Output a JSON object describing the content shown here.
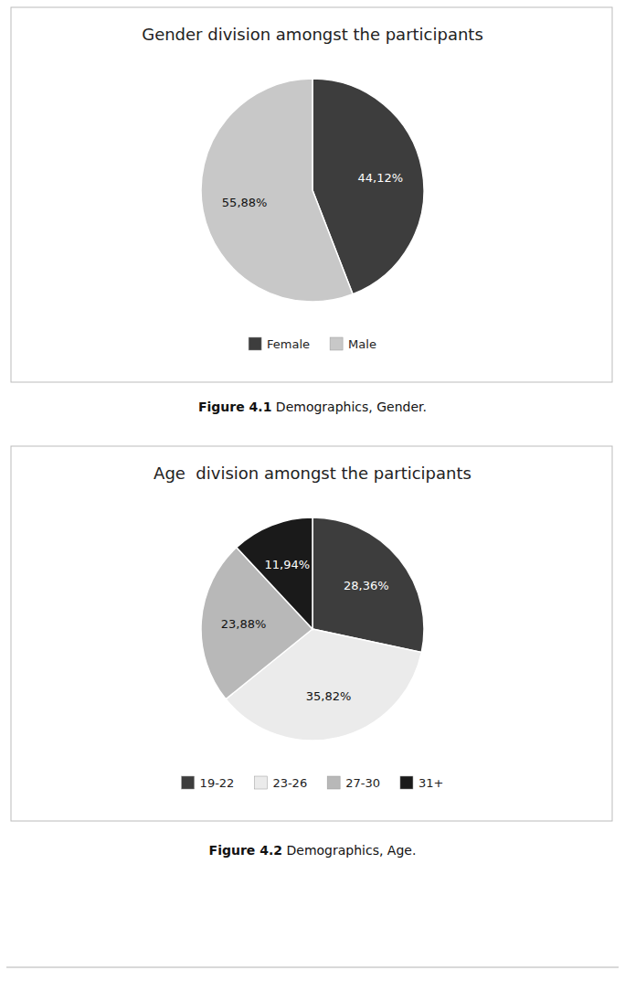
{
  "chart_data": [
    {
      "type": "pie",
      "title": "Gender division amongst the participants",
      "categories": [
        "Female",
        "Male"
      ],
      "values": [
        44.12,
        55.88
      ],
      "value_labels": [
        "44,12%",
        "55,88%"
      ],
      "colors": [
        "#3d3d3d",
        "#c8c8c8"
      ],
      "data_labels": true,
      "legend": "bottom",
      "annotations": [
        "Figure 4.1",
        "Demographics, Gender."
      ]
    },
    {
      "type": "pie",
      "title": "Age  division amongst the participants",
      "categories": [
        "19-22",
        "23-26",
        "27-30",
        "31+"
      ],
      "values": [
        28.36,
        35.82,
        23.88,
        11.94
      ],
      "value_labels": [
        "28,36%",
        "35,82%",
        "23,88%",
        "11,94%"
      ],
      "colors": [
        "#3d3d3d",
        "#ebebeb",
        "#b8b8b8",
        "#1a1a1a"
      ],
      "data_labels": true,
      "legend": "bottom",
      "annotations": [
        "Figure 4.2",
        "Demographics, Age."
      ]
    }
  ]
}
